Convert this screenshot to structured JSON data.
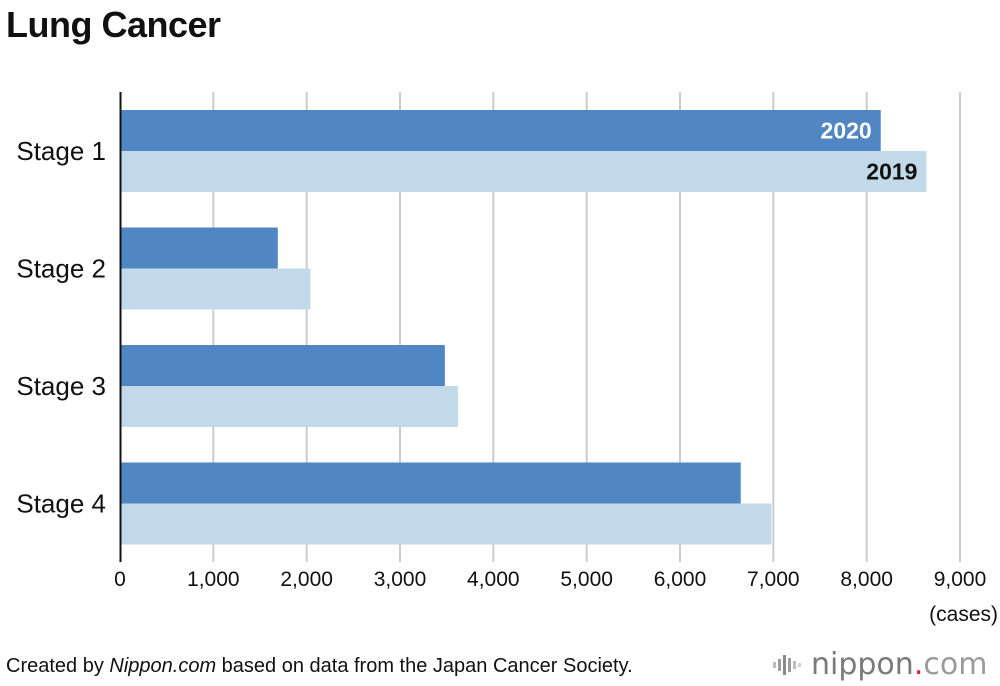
{
  "chart_data": {
    "type": "bar",
    "orientation": "horizontal",
    "title": "Lung Cancer",
    "categories": [
      "Stage 1",
      "Stage 2",
      "Stage 3",
      "Stage 4"
    ],
    "series": [
      {
        "name": "2020",
        "values": [
          8140,
          1680,
          3470,
          6640
        ],
        "color": "#5086c1"
      },
      {
        "name": "2019",
        "values": [
          8630,
          2030,
          3610,
          6970
        ],
        "color": "#c2d9ea"
      }
    ],
    "xticks": [
      "0",
      "1,000",
      "2,000",
      "3,000",
      "4,000",
      "5,000",
      "6,000",
      "7,000",
      "8,000",
      "9,000"
    ],
    "xlim": [
      0,
      9000
    ],
    "xlabel": "(cases)",
    "grid": true,
    "gridline_color": "#cccccc"
  },
  "footer": {
    "prefix": "Created by ",
    "source_italic": "Nippon.com",
    "suffix": " based on data from the Japan Cancer Society."
  },
  "logo": {
    "name": "nippon",
    "dot": ".",
    "tld": "com"
  }
}
